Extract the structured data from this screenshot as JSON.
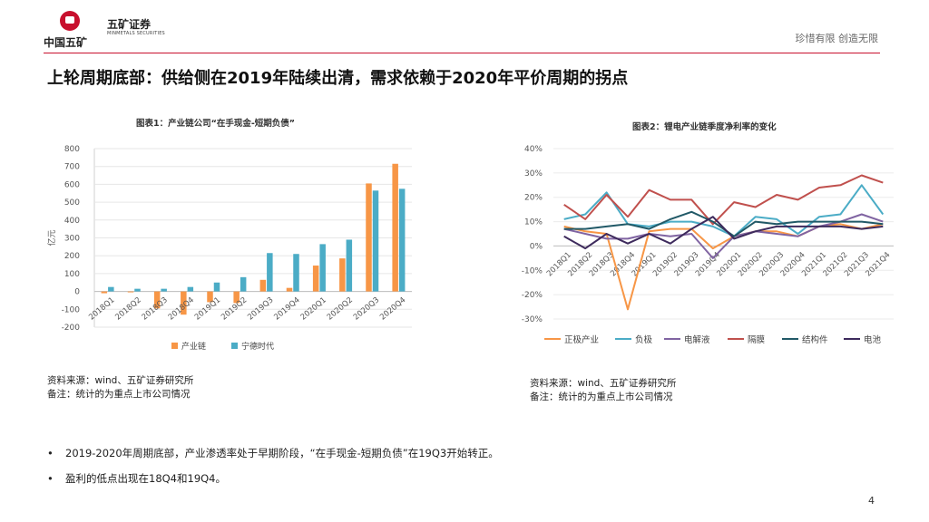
{
  "header": {
    "logo_text": "中国五矿",
    "brand_cn": "五矿证券",
    "brand_en": "MINMETALS SECURITIES",
    "slogan": "珍惜有限  创造无限"
  },
  "title": "上轮周期底部：供给侧在2019年陆续出清，需求依赖于2020年平价周期的拐点",
  "chart1": {
    "title": "图表1：产业链公司“在手现金-短期负债”",
    "ylabel": "亿元",
    "source": "资料来源：wind、五矿证券研究所",
    "note": "备注：统计的为重点上市公司情况"
  },
  "chart2": {
    "title": "图表2：锂电产业链季度净利率的变化",
    "source": "资料来源：wind、五矿证券研究所",
    "note": "备注：统计的为重点上市公司情况"
  },
  "bullets": [
    "2019-2020年周期底部，产业渗透率处于早期阶段，“在手现金-短期负债”在19Q3开始转正。",
    "盈利的低点出现在18Q4和19Q4。"
  ],
  "bullet_marker": "•",
  "page_number": "4",
  "chart_data": [
    {
      "type": "bar",
      "title": "图表1：产业链公司“在手现金-短期负债”",
      "ylabel": "亿元",
      "categories": [
        "2018Q1",
        "2018Q2",
        "2018Q3",
        "2018Q4",
        "2019Q1",
        "2019Q2",
        "2019Q3",
        "2019Q4",
        "2020Q1",
        "2020Q2",
        "2020Q3",
        "2020Q4"
      ],
      "ylim": [
        -200,
        800
      ],
      "yticks": [
        -200,
        -100,
        0,
        100,
        200,
        300,
        400,
        500,
        600,
        700,
        800
      ],
      "series": [
        {
          "name": "产业链",
          "color": "#f79646",
          "values": [
            -10,
            -5,
            -95,
            -130,
            -60,
            -65,
            65,
            20,
            145,
            185,
            605,
            715
          ]
        },
        {
          "name": "宁德时代",
          "color": "#4bacc6",
          "values": [
            25,
            15,
            15,
            25,
            50,
            80,
            215,
            210,
            265,
            290,
            565,
            575
          ]
        }
      ]
    },
    {
      "type": "line",
      "title": "图表2：锂电产业链季度净利率的变化",
      "categories": [
        "2018Q1",
        "2018Q2",
        "2018Q3",
        "2018Q4",
        "2019Q1",
        "2019Q2",
        "2019Q3",
        "2019Q4",
        "2020Q1",
        "2020Q2",
        "2020Q3",
        "2020Q4",
        "2021Q1",
        "2021Q2",
        "2021Q3",
        "2021Q4"
      ],
      "ylim": [
        -30,
        40
      ],
      "yticks": [
        -30,
        -20,
        -10,
        0,
        10,
        20,
        30,
        40
      ],
      "ytick_labels": [
        "-30%",
        "-20%",
        "-10%",
        "0%",
        "10%",
        "20%",
        "30%",
        "40%"
      ],
      "series": [
        {
          "name": "正极产业",
          "color": "#f79646",
          "values": [
            8,
            6,
            5,
            -26,
            6,
            7,
            7,
            -1,
            4,
            6,
            6,
            4,
            8,
            9,
            7,
            9
          ]
        },
        {
          "name": "负极",
          "color": "#4bacc6",
          "values": [
            11,
            13,
            22,
            9,
            8,
            10,
            10,
            8,
            4,
            12,
            11,
            5,
            12,
            13,
            25,
            13
          ]
        },
        {
          "name": "电解液",
          "color": "#8064a2",
          "values": [
            7,
            5,
            3,
            3,
            5,
            4,
            5,
            -5,
            4,
            6,
            5,
            4,
            8,
            10,
            13,
            10
          ]
        },
        {
          "name": "隔膜",
          "color": "#c0504d",
          "values": [
            17,
            11,
            21,
            12,
            23,
            19,
            19,
            9,
            18,
            16,
            21,
            19,
            24,
            25,
            29,
            26
          ]
        },
        {
          "name": "结构件",
          "color": "#215967",
          "values": [
            7,
            7,
            8,
            9,
            7,
            11,
            14,
            10,
            4,
            10,
            9,
            10,
            10,
            10,
            10,
            9
          ]
        },
        {
          "name": "电池",
          "color": "#3d2a5c",
          "values": [
            4,
            -1,
            5,
            1,
            5,
            1,
            7,
            12,
            3,
            6,
            8,
            8,
            8,
            8,
            7,
            8
          ]
        }
      ]
    }
  ]
}
